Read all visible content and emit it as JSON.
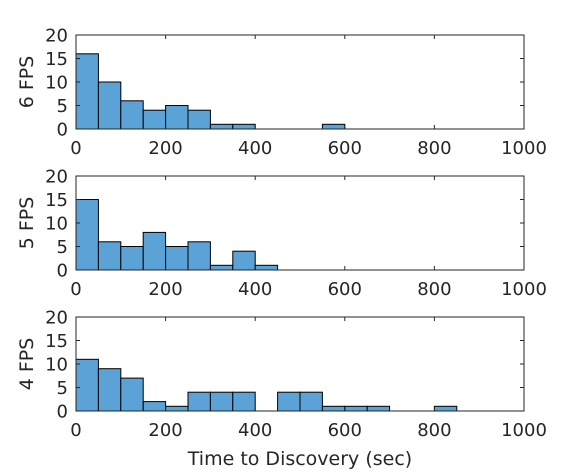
{
  "chart_data": [
    {
      "type": "bar",
      "ylabel": "6 FPS",
      "xlim": [
        0,
        1000
      ],
      "ylim": [
        0,
        20
      ],
      "bin_width": 50,
      "bin_starts": [
        0,
        50,
        100,
        150,
        200,
        250,
        300,
        350,
        550
      ],
      "values": [
        16,
        10,
        6,
        4,
        5,
        4,
        1,
        1,
        1
      ],
      "xticks": [
        0,
        200,
        400,
        600,
        800,
        1000
      ],
      "yticks": [
        0,
        5,
        10,
        15,
        20
      ],
      "grid": false
    },
    {
      "type": "bar",
      "ylabel": "5 FPS",
      "xlim": [
        0,
        1000
      ],
      "ylim": [
        0,
        20
      ],
      "bin_width": 50,
      "bin_starts": [
        0,
        50,
        100,
        150,
        200,
        250,
        300,
        350,
        400
      ],
      "values": [
        15,
        6,
        5,
        8,
        5,
        6,
        1,
        4,
        1
      ],
      "xticks": [
        0,
        200,
        400,
        600,
        800,
        1000
      ],
      "yticks": [
        0,
        5,
        10,
        15,
        20
      ],
      "grid": false
    },
    {
      "type": "bar",
      "ylabel": "4 FPS",
      "xlabel": "Time to Discovery (sec)",
      "xlim": [
        0,
        1000
      ],
      "ylim": [
        0,
        20
      ],
      "bin_width": 50,
      "bin_starts": [
        0,
        50,
        100,
        150,
        200,
        250,
        300,
        350,
        450,
        500,
        550,
        600,
        650,
        800
      ],
      "values": [
        11,
        9,
        7,
        2,
        1,
        4,
        4,
        4,
        4,
        4,
        1,
        1,
        1,
        1
      ],
      "xticks": [
        0,
        200,
        400,
        600,
        800,
        1000
      ],
      "yticks": [
        0,
        5,
        10,
        15,
        20
      ],
      "grid": false
    }
  ],
  "colors": {
    "bar_fill": "#5ba3d6",
    "bar_edge": "#000000",
    "axis": "#262626"
  }
}
